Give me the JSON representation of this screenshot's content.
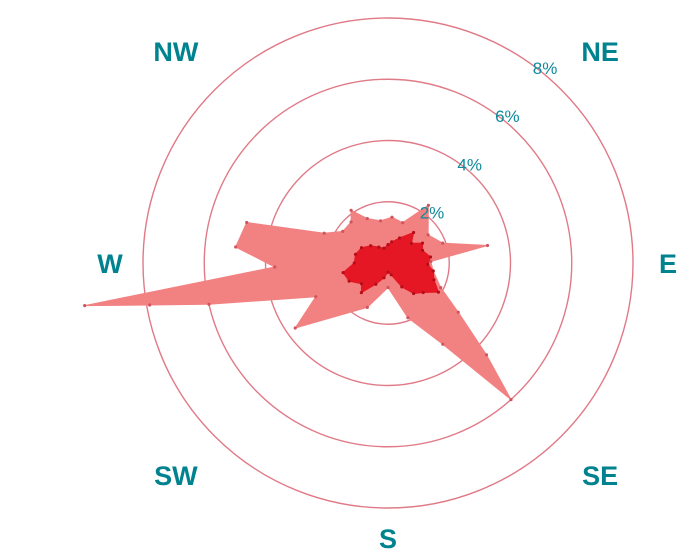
{
  "chart_data": {
    "type": "radar",
    "radial_unit": "%",
    "radial_max": 8,
    "grid": true,
    "rings": [
      {
        "value": 2,
        "label": "2%"
      },
      {
        "value": 4,
        "label": "4%"
      },
      {
        "value": 6,
        "label": "6%"
      },
      {
        "value": 8,
        "label": "8%"
      }
    ],
    "directions": [
      {
        "label": "NW",
        "bearing": 315
      },
      {
        "label": "NE",
        "bearing": 45
      },
      {
        "label": "W",
        "bearing": 270
      },
      {
        "label": "E",
        "bearing": 90
      },
      {
        "label": "SW",
        "bearing": 225
      },
      {
        "label": "SE",
        "bearing": 135
      },
      {
        "label": "S",
        "bearing": 180
      }
    ],
    "series": [
      {
        "color": "#f28282",
        "points": [
          {
            "bearing": 5,
            "value": 1.5
          },
          {
            "bearing": 20,
            "value": 1.4
          },
          {
            "bearing": 35,
            "value": 2.3
          },
          {
            "bearing": 55,
            "value": 1.6
          },
          {
            "bearing": 70,
            "value": 1.9
          },
          {
            "bearing": 80,
            "value": 3.3
          },
          {
            "bearing": 88,
            "value": 1.4
          },
          {
            "bearing": 100,
            "value": 1.5
          },
          {
            "bearing": 115,
            "value": 1.9
          },
          {
            "bearing": 125,
            "value": 2.8
          },
          {
            "bearing": 133,
            "value": 4.4
          },
          {
            "bearing": 138,
            "value": 6.0
          },
          {
            "bearing": 146,
            "value": 3.2
          },
          {
            "bearing": 160,
            "value": 1.9
          },
          {
            "bearing": 180,
            "value": 0.8
          },
          {
            "bearing": 205,
            "value": 1.6
          },
          {
            "bearing": 235,
            "value": 3.7
          },
          {
            "bearing": 245,
            "value": 2.6
          },
          {
            "bearing": 257,
            "value": 6.0
          },
          {
            "bearing": 260,
            "value": 7.9
          },
          {
            "bearing": 262,
            "value": 10.0
          },
          {
            "bearing": 268,
            "value": 3.7
          },
          {
            "bearing": 276,
            "value": 5.0
          },
          {
            "bearing": 286,
            "value": 4.8
          },
          {
            "bearing": 295,
            "value": 2.3
          },
          {
            "bearing": 305,
            "value": 1.8
          },
          {
            "bearing": 318,
            "value": 1.8
          },
          {
            "bearing": 325,
            "value": 2.1
          },
          {
            "bearing": 335,
            "value": 1.6
          },
          {
            "bearing": 350,
            "value": 1.4
          }
        ]
      },
      {
        "color": "#e51724",
        "points": [
          {
            "bearing": 0,
            "value": 0.6
          },
          {
            "bearing": 10,
            "value": 0.7
          },
          {
            "bearing": 25,
            "value": 0.9
          },
          {
            "bearing": 40,
            "value": 1.3
          },
          {
            "bearing": 50,
            "value": 1.0
          },
          {
            "bearing": 60,
            "value": 1.3
          },
          {
            "bearing": 70,
            "value": 1.2
          },
          {
            "bearing": 82,
            "value": 1.4
          },
          {
            "bearing": 92,
            "value": 1.3
          },
          {
            "bearing": 100,
            "value": 1.5
          },
          {
            "bearing": 110,
            "value": 1.6
          },
          {
            "bearing": 120,
            "value": 1.9
          },
          {
            "bearing": 130,
            "value": 1.5
          },
          {
            "bearing": 140,
            "value": 1.3
          },
          {
            "bearing": 150,
            "value": 0.9
          },
          {
            "bearing": 165,
            "value": 0.4
          },
          {
            "bearing": 180,
            "value": 0.3
          },
          {
            "bearing": 195,
            "value": 0.5
          },
          {
            "bearing": 210,
            "value": 0.8
          },
          {
            "bearing": 222,
            "value": 1.3
          },
          {
            "bearing": 232,
            "value": 1.1
          },
          {
            "bearing": 245,
            "value": 1.4
          },
          {
            "bearing": 258,
            "value": 1.5
          },
          {
            "bearing": 270,
            "value": 1.1
          },
          {
            "bearing": 285,
            "value": 1.1
          },
          {
            "bearing": 300,
            "value": 1.0
          },
          {
            "bearing": 315,
            "value": 0.8
          },
          {
            "bearing": 330,
            "value": 0.6
          },
          {
            "bearing": 345,
            "value": 0.5
          }
        ]
      }
    ],
    "colors": {
      "ring": "#e07a87",
      "direction_label": "#00838f",
      "ring_label": "#0e8a9b"
    }
  }
}
